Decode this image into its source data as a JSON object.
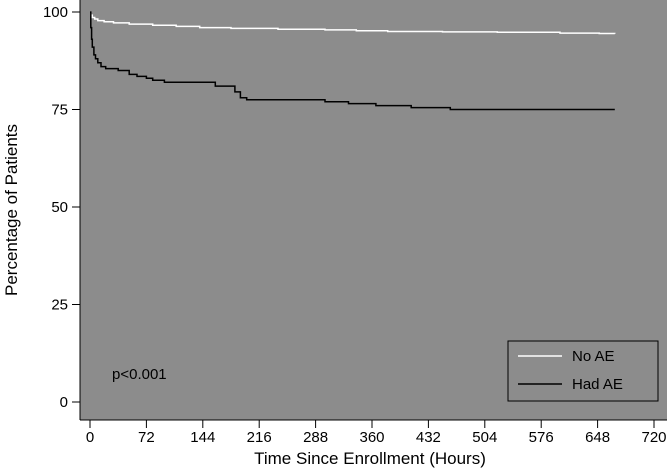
{
  "chart_data": {
    "type": "line",
    "step": true,
    "xlabel": "Time Since Enrollment (Hours)",
    "ylabel": "Percentage of Patients",
    "xlim": [
      0,
      720
    ],
    "ylim": [
      0,
      100
    ],
    "xticks": [
      0,
      72,
      144,
      216,
      288,
      360,
      432,
      504,
      576,
      648,
      720
    ],
    "yticks": [
      0,
      25,
      50,
      75,
      100
    ],
    "annotation": "p<0.001",
    "legend_position": "bottom-right",
    "grid": false,
    "colors": {
      "plot_background": "#8c8c8c",
      "no_ae": "#ffffff",
      "had_ae": "#000000"
    },
    "series": [
      {
        "name": "No AE",
        "color_key": "no_ae",
        "points": [
          [
            0,
            100
          ],
          [
            1,
            99.2
          ],
          [
            3,
            98.6
          ],
          [
            6,
            98.2
          ],
          [
            10,
            97.8
          ],
          [
            18,
            97.5
          ],
          [
            30,
            97.2
          ],
          [
            50,
            96.9
          ],
          [
            80,
            96.6
          ],
          [
            110,
            96.3
          ],
          [
            140,
            96.0
          ],
          [
            180,
            95.8
          ],
          [
            240,
            95.6
          ],
          [
            300,
            95.4
          ],
          [
            340,
            95.2
          ],
          [
            380,
            95.0
          ],
          [
            450,
            94.9
          ],
          [
            520,
            94.8
          ],
          [
            600,
            94.6
          ],
          [
            650,
            94.5
          ],
          [
            670,
            94.4
          ]
        ]
      },
      {
        "name": "Had AE",
        "color_key": "had_ae",
        "points": [
          [
            0,
            100
          ],
          [
            1,
            96
          ],
          [
            2,
            93
          ],
          [
            3,
            91
          ],
          [
            5,
            89
          ],
          [
            7,
            88
          ],
          [
            10,
            87
          ],
          [
            14,
            86
          ],
          [
            20,
            85.5
          ],
          [
            36,
            85
          ],
          [
            50,
            84
          ],
          [
            60,
            83.5
          ],
          [
            72,
            83
          ],
          [
            80,
            82.5
          ],
          [
            95,
            82
          ],
          [
            120,
            82
          ],
          [
            150,
            82
          ],
          [
            160,
            81
          ],
          [
            185,
            79.5
          ],
          [
            192,
            78
          ],
          [
            200,
            77.5
          ],
          [
            250,
            77.5
          ],
          [
            300,
            77
          ],
          [
            330,
            76.5
          ],
          [
            365,
            76
          ],
          [
            410,
            75.5
          ],
          [
            460,
            75
          ],
          [
            500,
            75
          ],
          [
            600,
            75
          ],
          [
            670,
            75
          ]
        ]
      }
    ]
  }
}
